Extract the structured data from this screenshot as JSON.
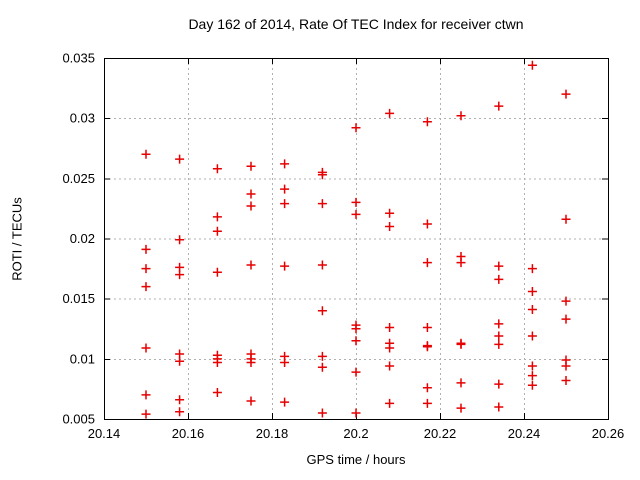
{
  "chart_data": {
    "type": "scatter",
    "title": "Day 162 of 2014, Rate Of TEC Index for receiver ctwn",
    "xlabel": "GPS time / hours",
    "ylabel": "ROTI / TECUs",
    "xlim": [
      20.14,
      20.26
    ],
    "ylim": [
      0.005,
      0.035
    ],
    "xticks": {
      "values": [
        20.14,
        20.16,
        20.18,
        20.2,
        20.22,
        20.24,
        20.26
      ],
      "labels": [
        "20.14",
        "20.16",
        "20.18",
        "20.2",
        "20.22",
        "20.24",
        "20.26"
      ]
    },
    "yticks": {
      "values": [
        0.005,
        0.01,
        0.015,
        0.02,
        0.025,
        0.03,
        0.035
      ],
      "labels": [
        "0.005",
        "0.01",
        "0.015",
        "0.02",
        "0.025",
        "0.03",
        "0.035"
      ]
    },
    "grid": true,
    "legend": "none",
    "marker": "plus",
    "marker_color": "#e60000",
    "grid_color": "#b0b0b0",
    "border_color": "#000000",
    "series": [
      {
        "name": "ROTI",
        "points": [
          [
            20.15,
            0.027
          ],
          [
            20.15,
            0.0191
          ],
          [
            20.15,
            0.0175
          ],
          [
            20.15,
            0.016
          ],
          [
            20.15,
            0.0109
          ],
          [
            20.15,
            0.007
          ],
          [
            20.15,
            0.0054
          ],
          [
            20.158,
            0.0266
          ],
          [
            20.158,
            0.0199
          ],
          [
            20.158,
            0.0176
          ],
          [
            20.158,
            0.017
          ],
          [
            20.158,
            0.0104
          ],
          [
            20.158,
            0.0098
          ],
          [
            20.158,
            0.0066
          ],
          [
            20.158,
            0.0056
          ],
          [
            20.167,
            0.0258
          ],
          [
            20.167,
            0.0218
          ],
          [
            20.167,
            0.0206
          ],
          [
            20.167,
            0.0172
          ],
          [
            20.167,
            0.0103
          ],
          [
            20.167,
            0.01
          ],
          [
            20.167,
            0.0097
          ],
          [
            20.167,
            0.0072
          ],
          [
            20.175,
            0.026
          ],
          [
            20.175,
            0.0237
          ],
          [
            20.175,
            0.0227
          ],
          [
            20.175,
            0.0178
          ],
          [
            20.175,
            0.0104
          ],
          [
            20.175,
            0.01
          ],
          [
            20.175,
            0.0097
          ],
          [
            20.175,
            0.0065
          ],
          [
            20.183,
            0.0262
          ],
          [
            20.183,
            0.0241
          ],
          [
            20.183,
            0.0229
          ],
          [
            20.183,
            0.0177
          ],
          [
            20.183,
            0.0102
          ],
          [
            20.183,
            0.0097
          ],
          [
            20.183,
            0.0064
          ],
          [
            20.192,
            0.0255
          ],
          [
            20.192,
            0.0253
          ],
          [
            20.192,
            0.0229
          ],
          [
            20.192,
            0.0178
          ],
          [
            20.192,
            0.014
          ],
          [
            20.192,
            0.0102
          ],
          [
            20.192,
            0.0093
          ],
          [
            20.192,
            0.0055
          ],
          [
            20.2,
            0.0292
          ],
          [
            20.2,
            0.023
          ],
          [
            20.2,
            0.022
          ],
          [
            20.2,
            0.0128
          ],
          [
            20.2,
            0.0125
          ],
          [
            20.2,
            0.0115
          ],
          [
            20.2,
            0.0089
          ],
          [
            20.2,
            0.0055
          ],
          [
            20.208,
            0.0304
          ],
          [
            20.208,
            0.0221
          ],
          [
            20.208,
            0.021
          ],
          [
            20.208,
            0.0126
          ],
          [
            20.208,
            0.0113
          ],
          [
            20.208,
            0.0109
          ],
          [
            20.208,
            0.0094
          ],
          [
            20.208,
            0.0063
          ],
          [
            20.217,
            0.0297
          ],
          [
            20.217,
            0.0212
          ],
          [
            20.217,
            0.018
          ],
          [
            20.217,
            0.0126
          ],
          [
            20.217,
            0.0111
          ],
          [
            20.217,
            0.011
          ],
          [
            20.217,
            0.0076
          ],
          [
            20.217,
            0.0063
          ],
          [
            20.225,
            0.0302
          ],
          [
            20.225,
            0.0185
          ],
          [
            20.225,
            0.018
          ],
          [
            20.225,
            0.0113
          ],
          [
            20.225,
            0.0112
          ],
          [
            20.225,
            0.008
          ],
          [
            20.225,
            0.0059
          ],
          [
            20.234,
            0.031
          ],
          [
            20.234,
            0.0177
          ],
          [
            20.234,
            0.0166
          ],
          [
            20.234,
            0.0129
          ],
          [
            20.234,
            0.0119
          ],
          [
            20.234,
            0.0112
          ],
          [
            20.234,
            0.0079
          ],
          [
            20.234,
            0.006
          ],
          [
            20.242,
            0.0344
          ],
          [
            20.242,
            0.0175
          ],
          [
            20.242,
            0.0156
          ],
          [
            20.242,
            0.0141
          ],
          [
            20.242,
            0.0119
          ],
          [
            20.242,
            0.0094
          ],
          [
            20.242,
            0.0086
          ],
          [
            20.242,
            0.0078
          ],
          [
            20.25,
            0.032
          ],
          [
            20.25,
            0.0216
          ],
          [
            20.25,
            0.0148
          ],
          [
            20.25,
            0.0133
          ],
          [
            20.25,
            0.0099
          ],
          [
            20.25,
            0.0094
          ],
          [
            20.25,
            0.0082
          ]
        ]
      }
    ]
  }
}
